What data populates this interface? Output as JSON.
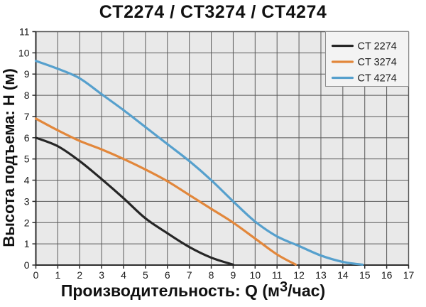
{
  "title": "CT2274 / CT3274 / CT4274",
  "axes": {
    "y_label": "Высота подъема: H (м)",
    "x_label_prefix": "Производительность: Q (м",
    "x_label_sup": "3",
    "x_label_suffix": "/час)"
  },
  "colors": {
    "plot_bg": "#e9e9e9",
    "grid": "#595959",
    "axis": "#2e2e2e",
    "tick_text": "#1a1a1a",
    "legend_bg": "#f3f3f3",
    "legend_border": "#8c8c8c",
    "legend_text": "#1a1a1a"
  },
  "chart_data": {
    "type": "line",
    "title": "CT2274 / CT3274 / CT4274",
    "xlabel": "Производительность: Q (м³/час)",
    "ylabel": "Высота подъема: H (м)",
    "xlim": [
      0,
      17
    ],
    "ylim": [
      0,
      11
    ],
    "x_ticks": [
      0,
      1,
      2,
      3,
      4,
      5,
      6,
      7,
      8,
      9,
      10,
      11,
      12,
      13,
      14,
      15,
      16,
      17
    ],
    "y_ticks": [
      0,
      1,
      2,
      3,
      4,
      5,
      6,
      7,
      8,
      9,
      10,
      11
    ],
    "grid": true,
    "legend_position": "top-right",
    "series": [
      {
        "name": "CT 2274",
        "color": "#262626",
        "points": [
          [
            0,
            6.0
          ],
          [
            1,
            5.6
          ],
          [
            2,
            4.9
          ],
          [
            3,
            4.05
          ],
          [
            4,
            3.15
          ],
          [
            5,
            2.2
          ],
          [
            6,
            1.5
          ],
          [
            7,
            0.85
          ],
          [
            8,
            0.35
          ],
          [
            9,
            0.02
          ]
        ]
      },
      {
        "name": "CT 3274",
        "color": "#e2873b",
        "points": [
          [
            0,
            6.9
          ],
          [
            1,
            6.35
          ],
          [
            2,
            5.85
          ],
          [
            3,
            5.45
          ],
          [
            4,
            5.0
          ],
          [
            5,
            4.5
          ],
          [
            6,
            3.95
          ],
          [
            7,
            3.3
          ],
          [
            8,
            2.65
          ],
          [
            9,
            2.0
          ],
          [
            10,
            1.25
          ],
          [
            11,
            0.5
          ],
          [
            11.85,
            0.02
          ]
        ]
      },
      {
        "name": "CT 4274",
        "color": "#56a0cd",
        "points": [
          [
            0,
            9.62
          ],
          [
            1,
            9.25
          ],
          [
            2,
            8.8
          ],
          [
            3,
            8.05
          ],
          [
            4,
            7.3
          ],
          [
            5,
            6.5
          ],
          [
            6,
            5.7
          ],
          [
            7,
            4.9
          ],
          [
            8,
            4.0
          ],
          [
            9,
            3.0
          ],
          [
            10,
            2.05
          ],
          [
            11,
            1.35
          ],
          [
            12,
            0.9
          ],
          [
            13,
            0.45
          ],
          [
            14,
            0.15
          ],
          [
            14.9,
            0.02
          ]
        ]
      }
    ]
  }
}
